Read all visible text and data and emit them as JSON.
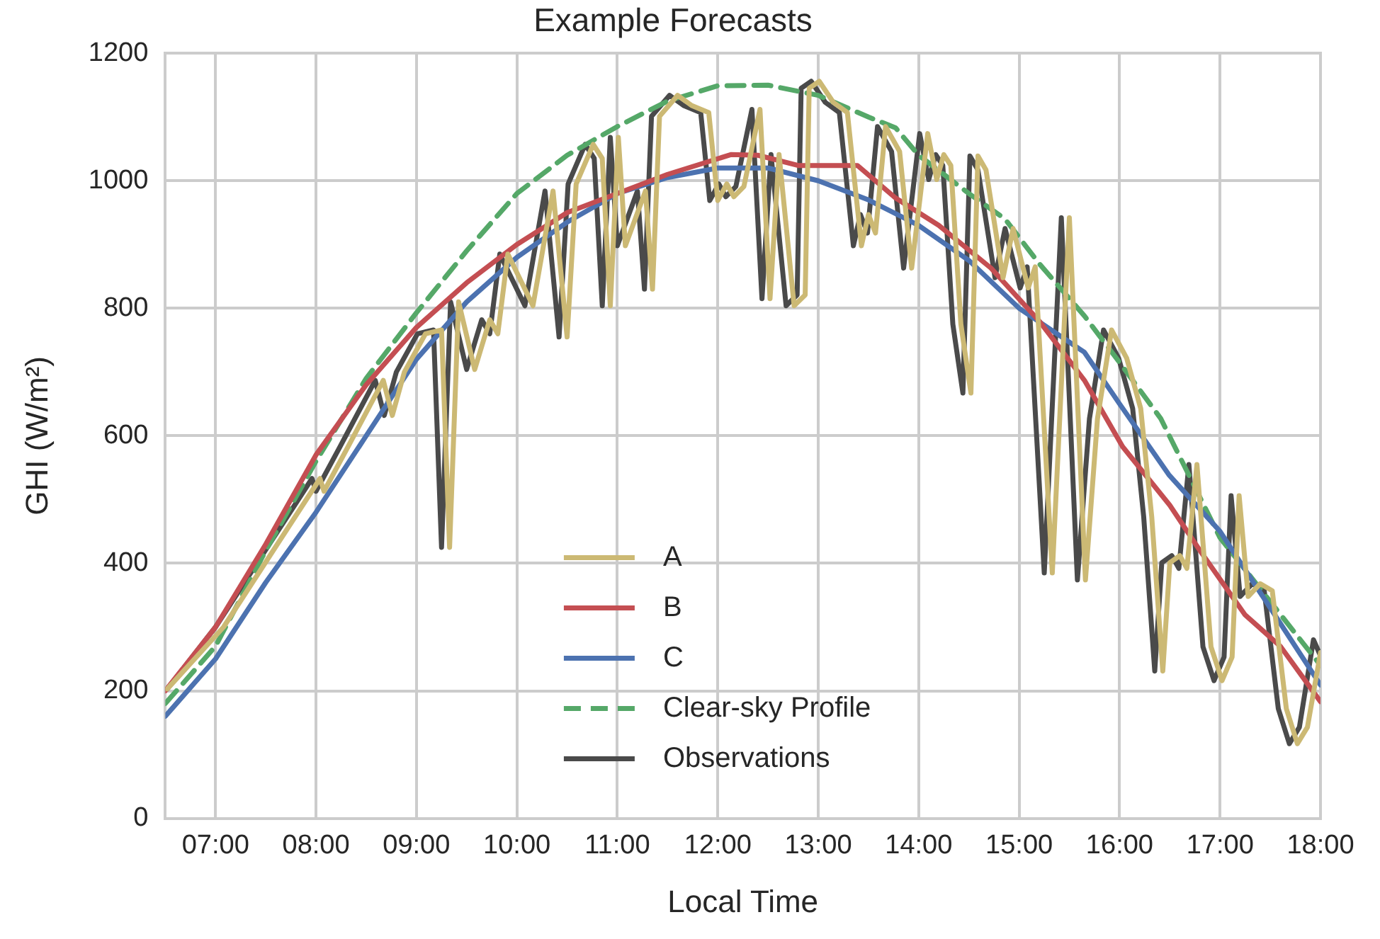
{
  "chart_data": {
    "type": "line",
    "title": "Example Forecasts",
    "xlabel": "Local Time",
    "ylabel": "GHI (W/m²)",
    "xlim": [
      6.5,
      18
    ],
    "ylim": [
      0,
      1200
    ],
    "xticks": [
      {
        "value": 7,
        "label": "07:00"
      },
      {
        "value": 8,
        "label": "08:00"
      },
      {
        "value": 9,
        "label": "09:00"
      },
      {
        "value": 10,
        "label": "10:00"
      },
      {
        "value": 11,
        "label": "11:00"
      },
      {
        "value": 12,
        "label": "12:00"
      },
      {
        "value": 13,
        "label": "13:00"
      },
      {
        "value": 14,
        "label": "14:00"
      },
      {
        "value": 15,
        "label": "15:00"
      },
      {
        "value": 16,
        "label": "16:00"
      },
      {
        "value": 17,
        "label": "17:00"
      },
      {
        "value": 18,
        "label": "18:00"
      }
    ],
    "yticks": [
      0,
      200,
      400,
      600,
      800,
      1000,
      1200
    ],
    "grid": true,
    "legend": "bottom",
    "marker": "none",
    "series": [
      {
        "name": "A",
        "color": "#ccb974",
        "line_style": "solid",
        "x": [
          6.52,
          7.08,
          8.04,
          8.08,
          8.32,
          8.67,
          8.76,
          8.88,
          9.09,
          9.25,
          9.33,
          9.42,
          9.58,
          9.73,
          9.81,
          9.91,
          10.16,
          10.36,
          10.5,
          10.59,
          10.76,
          10.85,
          10.93,
          11.01,
          11.08,
          11.28,
          11.35,
          11.42,
          11.6,
          11.74,
          11.91,
          12.0,
          12.09,
          12.16,
          12.26,
          12.42,
          12.52,
          12.61,
          12.76,
          12.87,
          12.91,
          13.01,
          13.15,
          13.29,
          13.43,
          13.5,
          13.57,
          13.67,
          13.81,
          13.93,
          14.09,
          14.18,
          14.25,
          14.32,
          14.42,
          14.52,
          14.59,
          14.67,
          14.84,
          14.94,
          15.09,
          15.16,
          15.33,
          15.5,
          15.66,
          15.78,
          15.92,
          16.07,
          16.21,
          16.32,
          16.43,
          16.5,
          16.6,
          16.67,
          16.77,
          16.91,
          17.02,
          17.12,
          17.19,
          17.28,
          17.4,
          17.52,
          17.66,
          17.77,
          17.87,
          18.0
        ],
        "values": [
          203,
          300,
          533,
          513,
          583,
          687,
          632,
          700,
          760,
          766,
          425,
          810,
          704,
          782,
          760,
          885,
          804,
          984,
          755,
          995,
          1057,
          1035,
          804,
          1068,
          898,
          984,
          830,
          1101,
          1134,
          1118,
          1107,
          969,
          995,
          975,
          991,
          1112,
          815,
          1041,
          804,
          821,
          1145,
          1156,
          1123,
          1107,
          898,
          947,
          918,
          1085,
          1046,
          863,
          1074,
          1002,
          1041,
          1024,
          775,
          667,
          1039,
          1017,
          848,
          925,
          832,
          865,
          385,
          942,
          374,
          627,
          766,
          722,
          643,
          473,
          231,
          401,
          412,
          392,
          555,
          269,
          216,
          253,
          506,
          348,
          368,
          357,
          172,
          117,
          143,
          260
        ]
      },
      {
        "name": "B",
        "color": "#c44e52",
        "line_style": "solid",
        "x": [
          6.5,
          7.0,
          7.5,
          8.0,
          8.5,
          9.0,
          9.5,
          10.0,
          10.5,
          11.0,
          11.5,
          12.13,
          12.4,
          12.8,
          13.1,
          13.39,
          13.77,
          14.2,
          14.72,
          15.2,
          15.65,
          16.03,
          16.5,
          16.8,
          17.25,
          17.6,
          18.0
        ],
        "values": [
          200,
          300,
          430,
          570,
          680,
          770,
          840,
          900,
          950,
          980,
          1010,
          1041,
          1040,
          1024,
          1024,
          1024,
          973,
          930,
          863,
          780,
          687,
          583,
          491,
          420,
          319,
          270,
          183
        ]
      },
      {
        "name": "C",
        "color": "#4c72b0",
        "line_style": "solid",
        "x": [
          6.5,
          7.0,
          7.5,
          8.0,
          8.5,
          9.0,
          9.5,
          10.0,
          10.5,
          11.0,
          11.5,
          12.0,
          12.5,
          13.0,
          13.5,
          14.0,
          14.5,
          15.0,
          15.65,
          16.0,
          16.49,
          17.0,
          17.5,
          18.0
        ],
        "values": [
          160,
          250,
          370,
          480,
          600,
          720,
          810,
          880,
          935,
          980,
          1005,
          1020,
          1020,
          1000,
          970,
          930,
          875,
          800,
          731,
          650,
          539,
          450,
          330,
          209
        ]
      },
      {
        "name": "Clear-sky Profile",
        "color": "#55a868",
        "line_style": "dashed",
        "x": [
          6.5,
          7.0,
          7.5,
          8.0,
          8.5,
          9.0,
          9.5,
          10.0,
          10.5,
          11.0,
          11.5,
          12.0,
          12.5,
          13.0,
          13.5,
          13.77,
          14.0,
          14.5,
          14.86,
          15.2,
          15.65,
          16.0,
          16.41,
          17.0,
          17.5,
          17.86,
          18.0
        ],
        "values": [
          180,
          270,
          420,
          560,
          690,
          793,
          890,
          980,
          1040,
          1085,
          1125,
          1149,
          1150,
          1134,
          1100,
          1083,
          1040,
          980,
          940,
          870,
          788,
          715,
          627,
          440,
          340,
          268,
          240
        ]
      },
      {
        "name": "Observations",
        "color": "#4a4a4a",
        "line_style": "solid",
        "x": [
          6.52,
          7.0,
          7.96,
          8.0,
          8.24,
          8.59,
          8.68,
          8.8,
          9.01,
          9.17,
          9.25,
          9.34,
          9.5,
          9.65,
          9.73,
          9.83,
          10.08,
          10.28,
          10.42,
          10.51,
          10.68,
          10.77,
          10.85,
          10.93,
          11.0,
          11.2,
          11.27,
          11.34,
          11.52,
          11.66,
          11.83,
          11.92,
          12.01,
          12.08,
          12.18,
          12.34,
          12.44,
          12.53,
          12.68,
          12.79,
          12.83,
          12.93,
          13.07,
          13.21,
          13.35,
          13.42,
          13.49,
          13.59,
          13.73,
          13.85,
          14.01,
          14.1,
          14.17,
          14.24,
          14.34,
          14.44,
          14.51,
          14.59,
          14.76,
          14.86,
          15.01,
          15.08,
          15.25,
          15.42,
          15.58,
          15.7,
          15.84,
          15.99,
          16.13,
          16.24,
          16.35,
          16.42,
          16.52,
          16.59,
          16.69,
          16.83,
          16.94,
          17.04,
          17.11,
          17.2,
          17.32,
          17.44,
          17.58,
          17.69,
          17.79,
          17.93,
          18.0
        ],
        "values": [
          203,
          300,
          533,
          513,
          583,
          687,
          632,
          700,
          760,
          766,
          425,
          810,
          704,
          782,
          760,
          885,
          804,
          984,
          755,
          995,
          1057,
          1035,
          804,
          1068,
          898,
          984,
          830,
          1101,
          1134,
          1118,
          1107,
          969,
          995,
          975,
          991,
          1112,
          815,
          1041,
          804,
          821,
          1145,
          1156,
          1123,
          1107,
          898,
          947,
          918,
          1085,
          1046,
          863,
          1074,
          1002,
          1041,
          1024,
          775,
          667,
          1039,
          1017,
          848,
          925,
          832,
          865,
          385,
          942,
          374,
          627,
          766,
          722,
          643,
          473,
          231,
          401,
          412,
          392,
          555,
          269,
          216,
          253,
          506,
          348,
          368,
          357,
          172,
          117,
          143,
          280,
          255
        ]
      }
    ]
  }
}
